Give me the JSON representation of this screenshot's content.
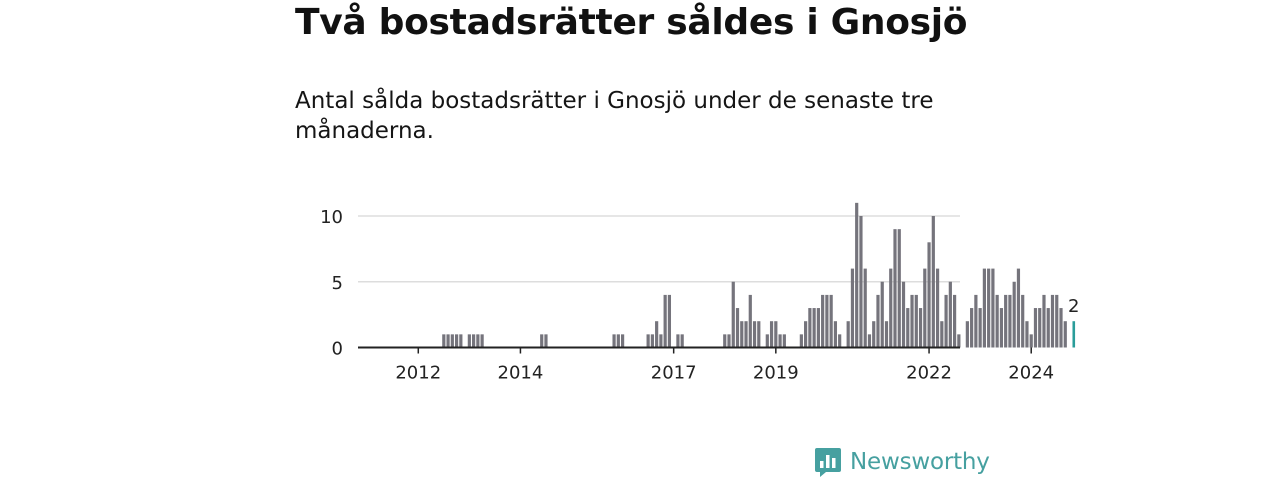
{
  "title": "Två bostadsrätter såldes i Gnosjö",
  "subtitle": "Antal sålda bostadsrätter i Gnosjö under de senaste tre månaderna.",
  "brand": {
    "name": "Newsworthy",
    "color": "#46a0a0",
    "icon": "newsworthy-bar-chart-icon"
  },
  "colors": {
    "bar": "#75747c",
    "highlight": "#2a9d9a",
    "grid": "#dddddd",
    "axis": "#222222"
  },
  "chart_data": {
    "type": "bar",
    "frequency": "monthly",
    "x_start": "2011-01",
    "ylim": [
      0,
      10
    ],
    "y_ticks": [
      0,
      5,
      10
    ],
    "x_ticks": [
      {
        "label": "2012",
        "month": "2012-01"
      },
      {
        "label": "2014",
        "month": "2014-01"
      },
      {
        "label": "2017",
        "month": "2017-01"
      },
      {
        "label": "2019",
        "month": "2019-01"
      },
      {
        "label": "2022",
        "month": "2022-01"
      },
      {
        "label": "2024",
        "month": "2024-01"
      }
    ],
    "grid": true,
    "values": [
      0,
      0,
      0,
      0,
      0,
      0,
      0,
      0,
      0,
      0,
      0,
      0,
      0,
      0,
      0,
      0,
      0,
      0,
      1,
      1,
      1,
      1,
      1,
      0,
      1,
      1,
      1,
      1,
      0,
      0,
      0,
      0,
      0,
      0,
      0,
      0,
      0,
      0,
      0,
      0,
      0,
      1,
      1,
      0,
      0,
      0,
      0,
      0,
      0,
      0,
      0,
      0,
      0,
      0,
      0,
      0,
      0,
      0,
      1,
      1,
      1,
      0,
      0,
      0,
      0,
      0,
      1,
      1,
      2,
      1,
      4,
      4,
      0,
      1,
      1,
      0,
      0,
      0,
      0,
      0,
      0,
      0,
      0,
      0,
      1,
      1,
      5,
      3,
      2,
      2,
      4,
      2,
      2,
      0,
      1,
      2,
      2,
      1,
      1,
      0,
      0,
      0,
      1,
      2,
      3,
      3,
      3,
      4,
      4,
      4,
      2,
      1,
      0,
      2,
      6,
      11,
      10,
      6,
      1,
      2,
      4,
      5,
      2,
      6,
      9,
      9,
      5,
      3,
      4,
      4,
      3,
      6,
      8,
      10,
      6,
      2,
      4,
      5,
      4,
      1,
      0,
      2,
      3,
      4,
      3,
      6,
      6,
      6,
      4,
      3,
      4,
      4,
      5,
      6,
      4,
      2,
      1,
      3,
      3,
      4,
      3,
      4,
      4,
      3,
      2,
      0,
      2
    ],
    "last_value_label": "2"
  }
}
